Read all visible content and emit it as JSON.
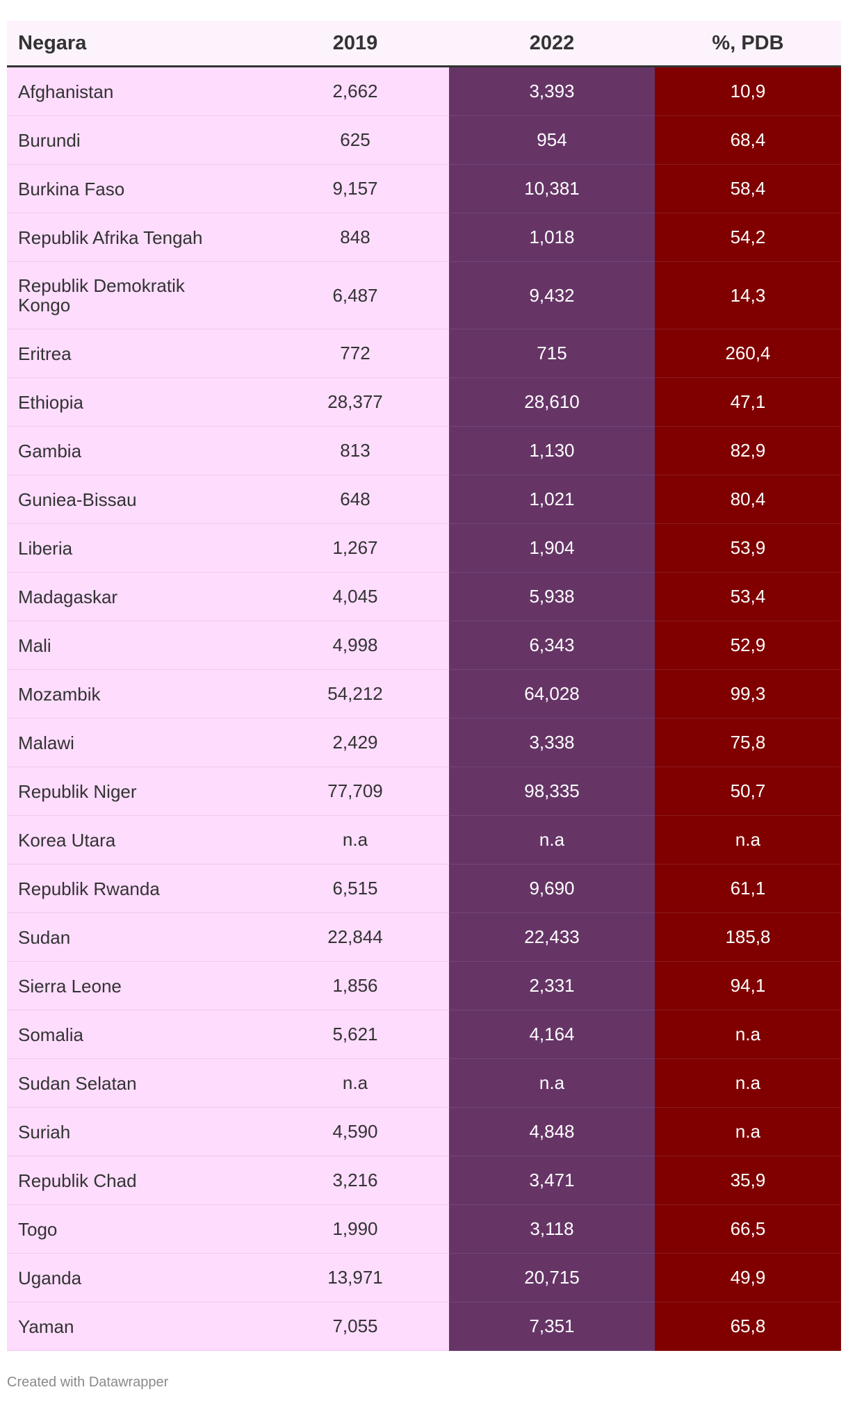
{
  "chart_data": {
    "type": "table",
    "columns": [
      "Negara",
      "2019",
      "2022",
      "%, PDB"
    ],
    "rows": [
      {
        "name": "Afghanistan",
        "v2019": "2,662",
        "v2022": "3,393",
        "pdb": "10,9"
      },
      {
        "name": "Burundi",
        "v2019": "625",
        "v2022": "954",
        "pdb": "68,4"
      },
      {
        "name": "Burkina Faso",
        "v2019": "9,157",
        "v2022": "10,381",
        "pdb": "58,4"
      },
      {
        "name": "Republik Afrika Tengah",
        "v2019": "848",
        "v2022": "1,018",
        "pdb": "54,2"
      },
      {
        "name": "Republik Demokratik Kongo",
        "v2019": "6,487",
        "v2022": "9,432",
        "pdb": "14,3"
      },
      {
        "name": "Eritrea",
        "v2019": "772",
        "v2022": "715",
        "pdb": "260,4"
      },
      {
        "name": "Ethiopia",
        "v2019": "28,377",
        "v2022": "28,610",
        "pdb": "47,1"
      },
      {
        "name": "Gambia",
        "v2019": "813",
        "v2022": "1,130",
        "pdb": "82,9"
      },
      {
        "name": "Guniea-Bissau",
        "v2019": "648",
        "v2022": "1,021",
        "pdb": "80,4"
      },
      {
        "name": "Liberia",
        "v2019": "1,267",
        "v2022": "1,904",
        "pdb": "53,9"
      },
      {
        "name": "Madagaskar",
        "v2019": "4,045",
        "v2022": "5,938",
        "pdb": "53,4"
      },
      {
        "name": "Mali",
        "v2019": "4,998",
        "v2022": "6,343",
        "pdb": "52,9"
      },
      {
        "name": "Mozambik",
        "v2019": "54,212",
        "v2022": "64,028",
        "pdb": "99,3"
      },
      {
        "name": "Malawi",
        "v2019": "2,429",
        "v2022": "3,338",
        "pdb": "75,8"
      },
      {
        "name": "Republik Niger",
        "v2019": "77,709",
        "v2022": "98,335",
        "pdb": "50,7"
      },
      {
        "name": "Korea Utara",
        "v2019": "n.a",
        "v2022": "n.a",
        "pdb": "n.a"
      },
      {
        "name": "Republik Rwanda",
        "v2019": "6,515",
        "v2022": "9,690",
        "pdb": "61,1"
      },
      {
        "name": "Sudan",
        "v2019": "22,844",
        "v2022": "22,433",
        "pdb": "185,8"
      },
      {
        "name": "Sierra Leone",
        "v2019": "1,856",
        "v2022": "2,331",
        "pdb": "94,1"
      },
      {
        "name": "Somalia",
        "v2019": "5,621",
        "v2022": "4,164",
        "pdb": "n.a"
      },
      {
        "name": "Sudan Selatan",
        "v2019": "n.a",
        "v2022": "n.a",
        "pdb": "n.a"
      },
      {
        "name": "Suriah",
        "v2019": "4,590",
        "v2022": "4,848",
        "pdb": "n.a"
      },
      {
        "name": "Republik Chad",
        "v2019": "3,216",
        "v2022": "3,471",
        "pdb": "35,9"
      },
      {
        "name": "Togo",
        "v2019": "1,990",
        "v2022": "3,118",
        "pdb": "66,5"
      },
      {
        "name": "Uganda",
        "v2019": "13,971",
        "v2022": "20,715",
        "pdb": "49,9"
      },
      {
        "name": "Yaman",
        "v2019": "7,055",
        "v2022": "7,351",
        "pdb": "65,8"
      }
    ],
    "colors": {
      "header_bg": "#fdf3fd",
      "light_col_bg": "#fddcfd",
      "col_2022_bg": "#663566",
      "col_pdb_bg": "#800000"
    }
  },
  "footer": {
    "credit": "Created with Datawrapper"
  }
}
